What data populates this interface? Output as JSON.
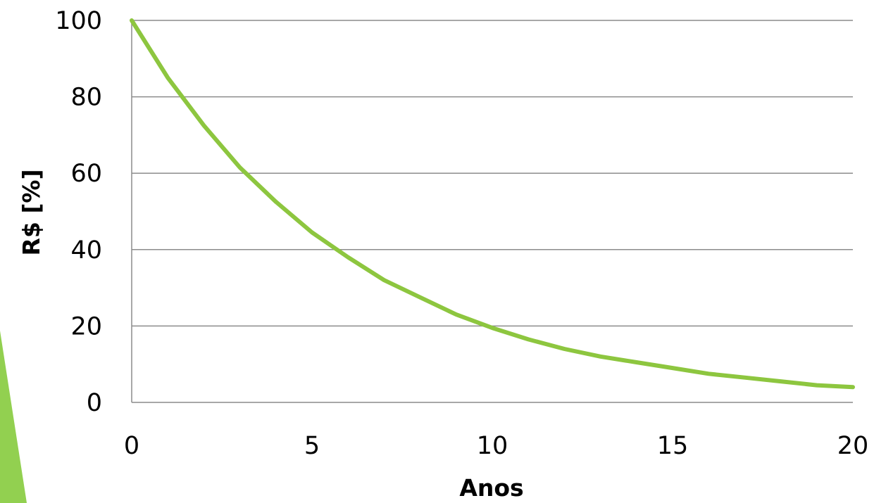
{
  "chart_data": {
    "type": "line",
    "title": "",
    "xlabel": "Anos",
    "ylabel": "R$ [%]",
    "xlim": [
      0,
      20
    ],
    "ylim": [
      0,
      100
    ],
    "x_ticks": [
      0,
      5,
      10,
      15,
      20
    ],
    "y_ticks": [
      0,
      20,
      40,
      60,
      80,
      100
    ],
    "x_tick_labels": [
      "0",
      "5",
      "10",
      "15",
      "20"
    ],
    "y_tick_labels": [
      "0",
      "20",
      "40",
      "60",
      "80",
      "100"
    ],
    "grid": "horizontal",
    "legend": "none",
    "series": [
      {
        "x": [
          0,
          1,
          2,
          3,
          4,
          5,
          6,
          7,
          8,
          9,
          10,
          11,
          12,
          13,
          14,
          15,
          16,
          17,
          18,
          19,
          20
        ],
        "y": [
          100,
          85,
          72.5,
          61.5,
          52.5,
          44.5,
          38,
          32,
          27.5,
          23,
          19.5,
          16.5,
          14,
          12,
          10.5,
          9,
          7.5,
          6.5,
          5.5,
          4.5,
          4
        ],
        "color": "#8dc63f"
      }
    ],
    "colors": {
      "line": "#8dc63f",
      "grid": "#8c8c8c",
      "axis": "#8c8c8c",
      "decoration": "#92d050"
    }
  }
}
